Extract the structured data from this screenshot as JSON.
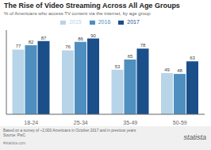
{
  "chart_data": {
    "type": "bar",
    "title": "The Rise of Video Streaming Across All Age Groups",
    "subtitle": "% of Americans who access TV content via the internet, by age group",
    "categories": [
      "18-24",
      "25-34",
      "35-49",
      "50-59"
    ],
    "series": [
      {
        "name": "2015",
        "color": "#b8d4e8",
        "values": [
          77,
          76,
          53,
          49
        ]
      },
      {
        "name": "2016",
        "color": "#4e8fc0",
        "values": [
          82,
          86,
          65,
          48
        ]
      },
      {
        "name": "2017",
        "color": "#1a4f8a",
        "values": [
          87,
          90,
          78,
          63
        ]
      }
    ],
    "ylim": [
      0,
      100
    ],
    "data_labels": true,
    "legend": "top",
    "grid": false,
    "tick_labels": "x",
    "annotations": [
      "Based on a survey of ~2,000 Americans in October 2017 and in previous years",
      "Source: PwC",
      "#statista.com",
      "statista"
    ]
  }
}
